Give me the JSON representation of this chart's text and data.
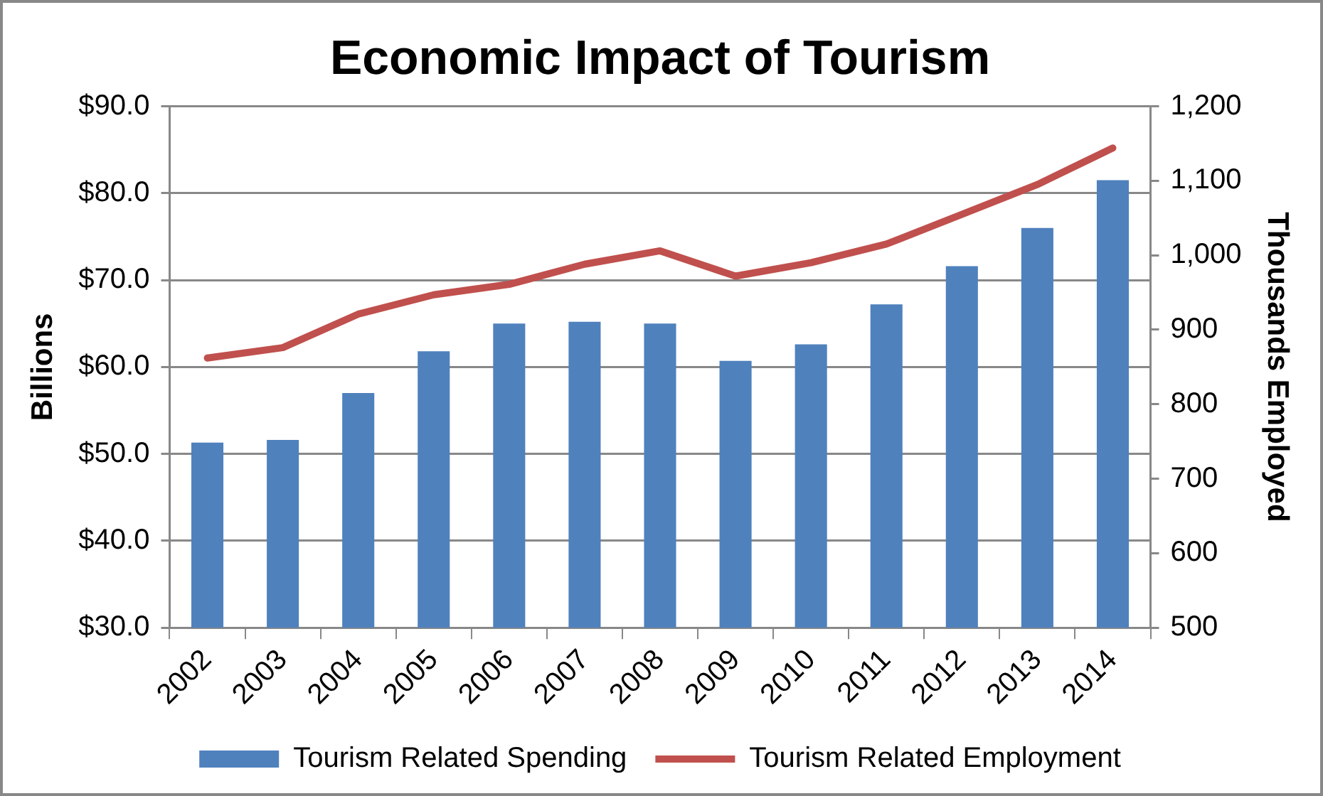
{
  "chart_data": {
    "type": "bar",
    "title": "Economic Impact of Tourism",
    "ylabel": "Billions",
    "y2label": "Thousands Employed",
    "categories": [
      "2002",
      "2003",
      "2004",
      "2005",
      "2006",
      "2007",
      "2008",
      "2009",
      "2010",
      "2011",
      "2012",
      "2013",
      "2014"
    ],
    "series": [
      {
        "name": "Tourism Related Spending",
        "color": "#4f81bd",
        "values": [
          51.3,
          51.6,
          57.0,
          61.8,
          65.0,
          65.2,
          65.0,
          60.7,
          62.6,
          67.2,
          71.6,
          76.0,
          81.5
        ]
      },
      {
        "name": "Tourism Related Employment",
        "type": "line",
        "axis": "y2",
        "color": "#c0504d",
        "values": [
          862,
          876,
          921,
          947,
          961,
          988,
          1006,
          972,
          990,
          1015,
          1055,
          1095,
          1144
        ]
      }
    ],
    "ylim": [
      30,
      90
    ],
    "yticks": [
      {
        "value": 30,
        "label": "$30.0"
      },
      {
        "value": 40,
        "label": "$40.0"
      },
      {
        "value": 50,
        "label": "$50.0"
      },
      {
        "value": 60,
        "label": "$60.0"
      },
      {
        "value": 70,
        "label": "$70.0"
      },
      {
        "value": 80,
        "label": "$80.0"
      },
      {
        "value": 90,
        "label": "$90.0"
      }
    ],
    "y2lim": [
      500,
      1200
    ],
    "y2ticks": [
      500,
      600,
      700,
      800,
      900,
      {
        "value": 1000,
        "label": "1,000"
      },
      {
        "value": 1100,
        "label": "1,100"
      },
      {
        "value": 1200,
        "label": "1,200"
      }
    ],
    "grid": "y",
    "legend": "bottom",
    "marker": "none",
    "line_style": "solid"
  }
}
